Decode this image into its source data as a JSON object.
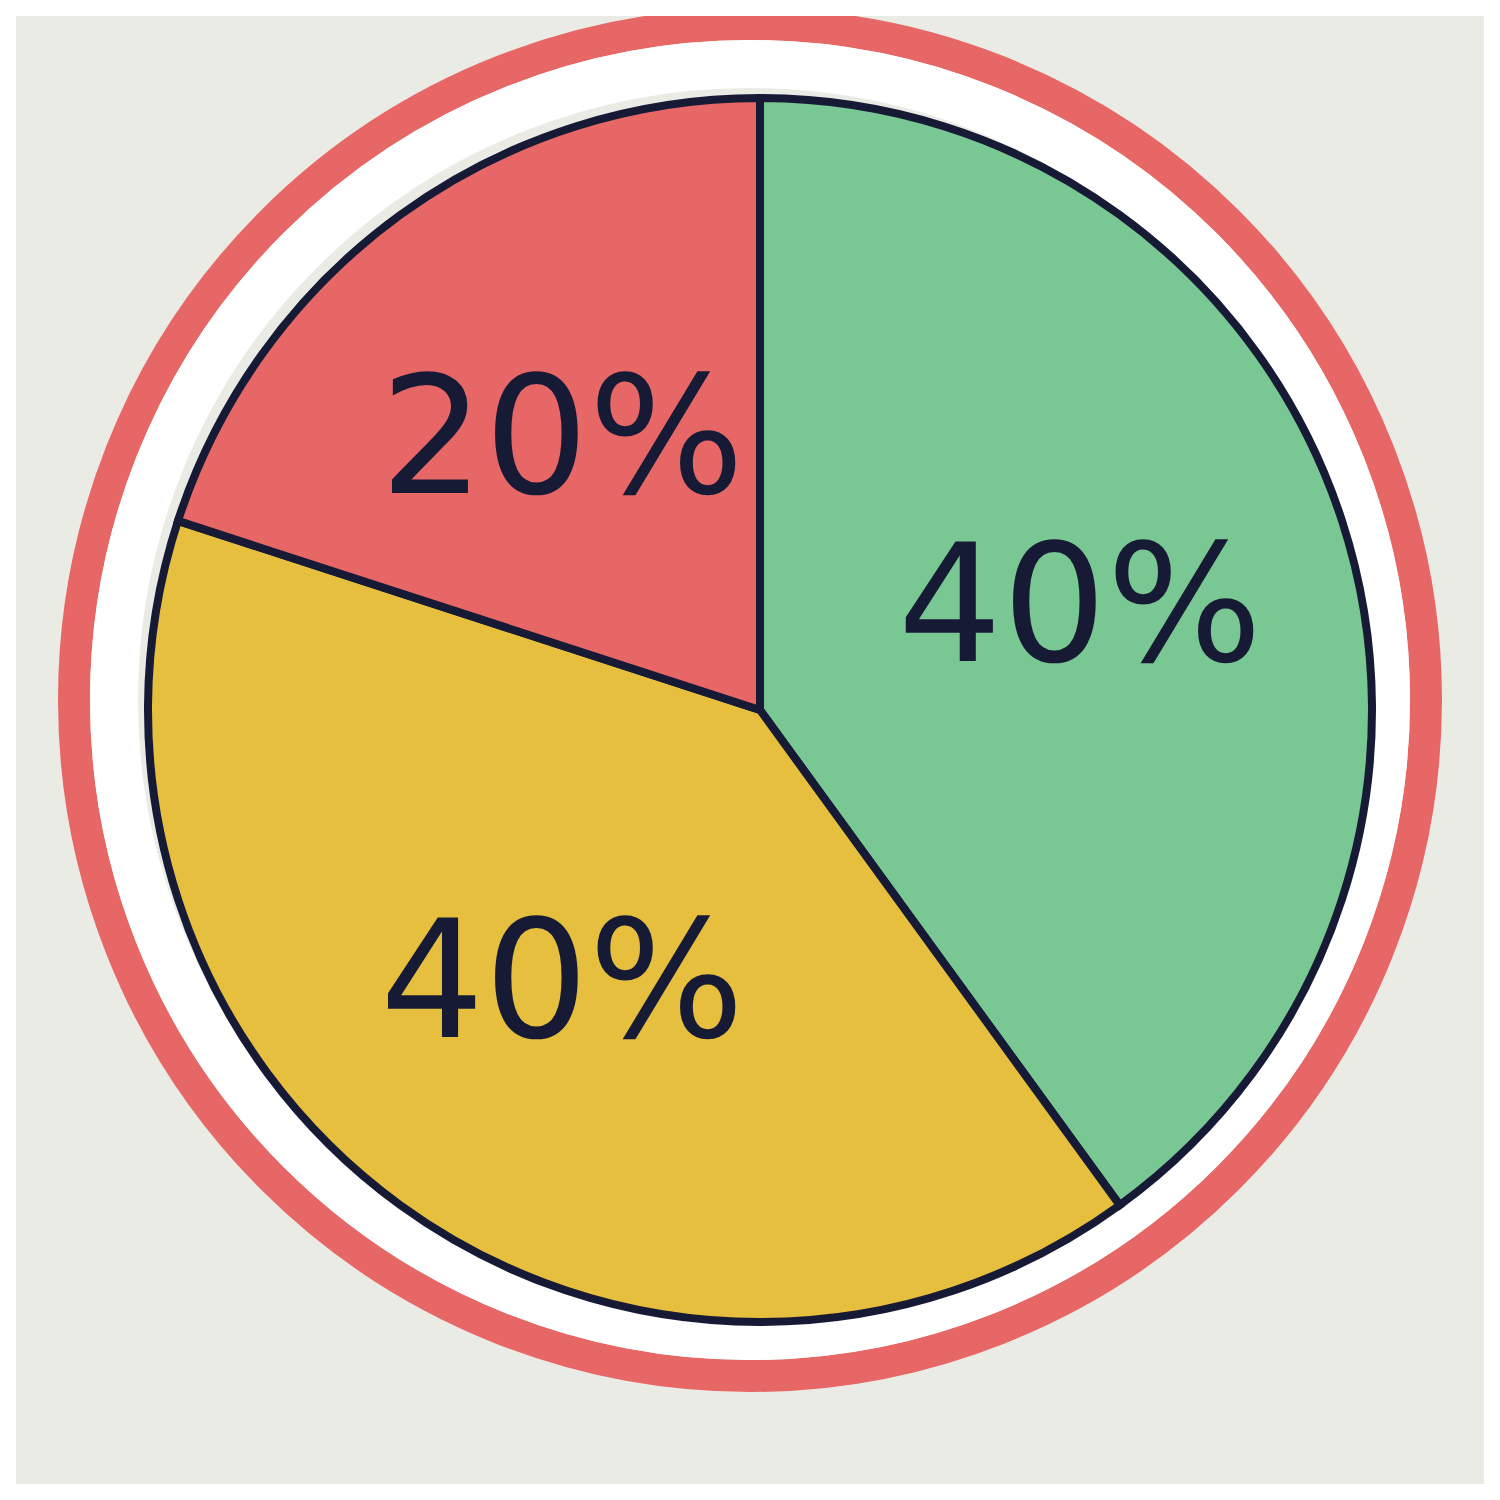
{
  "chart_data": {
    "type": "pie",
    "categories": [
      null,
      null,
      null
    ],
    "values": [
      40,
      40,
      20
    ],
    "colors": [
      "#79c792",
      "#e6bf3f",
      "#e76767"
    ],
    "value_labels": [
      "40%",
      "40%",
      "20%"
    ],
    "legend": false
  }
}
